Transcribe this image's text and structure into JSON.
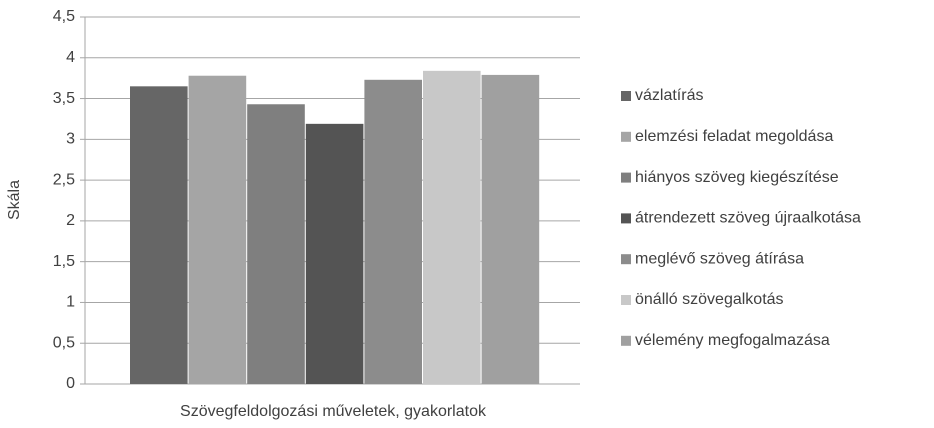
{
  "chart_data": {
    "type": "bar",
    "x_label": "Szövegfeldolgozási műveletek, gyakorlatok",
    "y_label": "Skála",
    "series": [
      {
        "name": "vázlatírás",
        "color": "#666666",
        "values": [
          3.65
        ]
      },
      {
        "name": "elemzési feladat megoldása",
        "color": "#a5a5a5",
        "values": [
          3.78
        ]
      },
      {
        "name": "hiányos szöveg kiegészítése",
        "color": "#7f7f7f",
        "values": [
          3.43
        ]
      },
      {
        "name": "átrendezett szöveg újraalkotása",
        "color": "#545454",
        "values": [
          3.19
        ]
      },
      {
        "name": "meglévő szöveg átírása",
        "color": "#8c8c8c",
        "values": [
          3.73
        ]
      },
      {
        "name": "önálló szövegalkotás",
        "color": "#c8c8c8",
        "values": [
          3.84
        ]
      },
      {
        "name": "vélemény megfogalmazása",
        "color": "#a0a0a0",
        "values": [
          3.79
        ]
      }
    ],
    "ylim": [
      0,
      4.5
    ],
    "yticks": [
      0,
      {
        "value": 0.5,
        "label": "0,5"
      },
      1,
      {
        "value": 1.5,
        "label": "1,5"
      },
      2,
      {
        "value": 2.5,
        "label": "2,5"
      },
      3,
      {
        "value": 3.5,
        "label": "3,5"
      },
      4,
      {
        "value": 4.5,
        "label": "4,5"
      }
    ],
    "grid": true,
    "legend": "right"
  }
}
